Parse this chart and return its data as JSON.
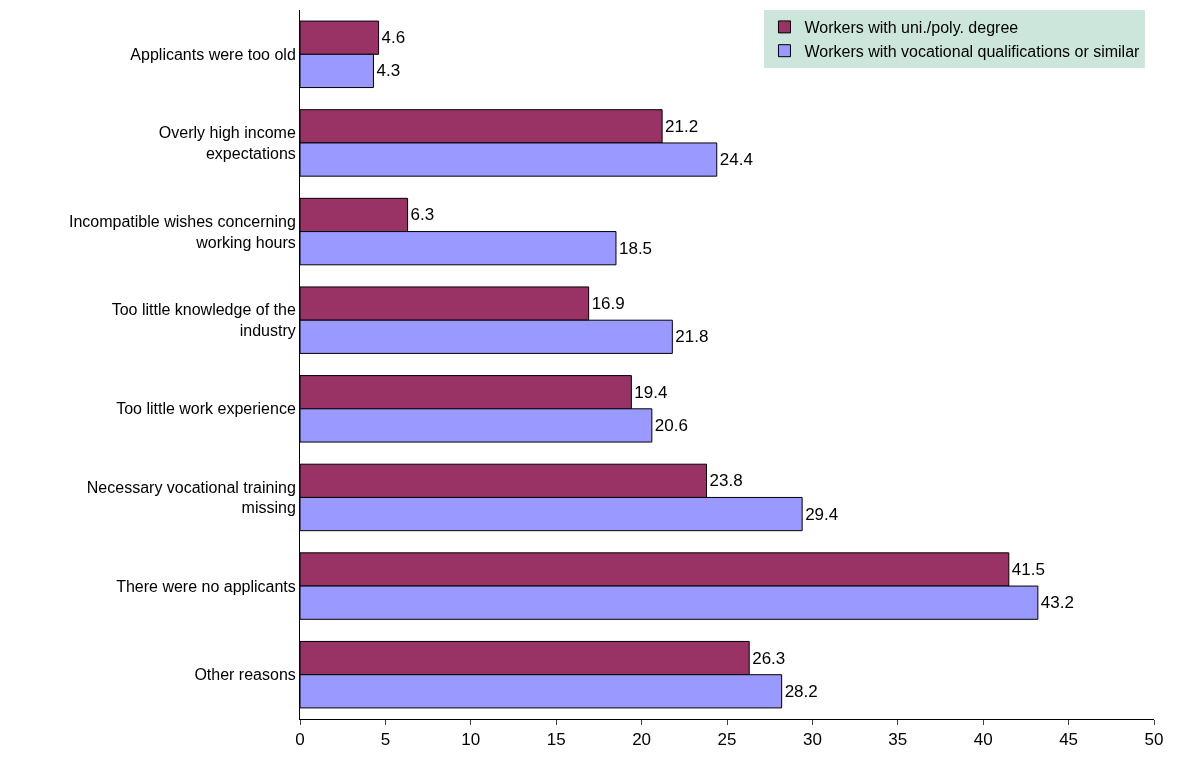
{
  "chart_data": {
    "type": "bar",
    "orientation": "horizontal",
    "categories": [
      "Applicants were too old",
      "Overly high income expectations",
      "Incompatible wishes concerning working hours",
      "Too little knowledge of the industry",
      "Too little work experience",
      "Necessary vocational training missing",
      "There were no applicants",
      "Other reasons"
    ],
    "series": [
      {
        "name": "Workers with uni./poly. degree",
        "color": "#993366",
        "values": [
          4.6,
          21.2,
          6.3,
          16.9,
          19.4,
          23.8,
          41.5,
          26.3
        ]
      },
      {
        "name": "Workers with vocational qualifications or similar",
        "color": "#9999ff",
        "values": [
          4.3,
          24.4,
          18.5,
          21.8,
          20.6,
          29.4,
          43.2,
          28.2
        ]
      }
    ],
    "xlim": [
      0,
      50
    ],
    "xticks": [
      0,
      5,
      10,
      15,
      20,
      25,
      30,
      35,
      40,
      45,
      50
    ],
    "data_labels": true,
    "grid": false,
    "legend": "top right"
  }
}
